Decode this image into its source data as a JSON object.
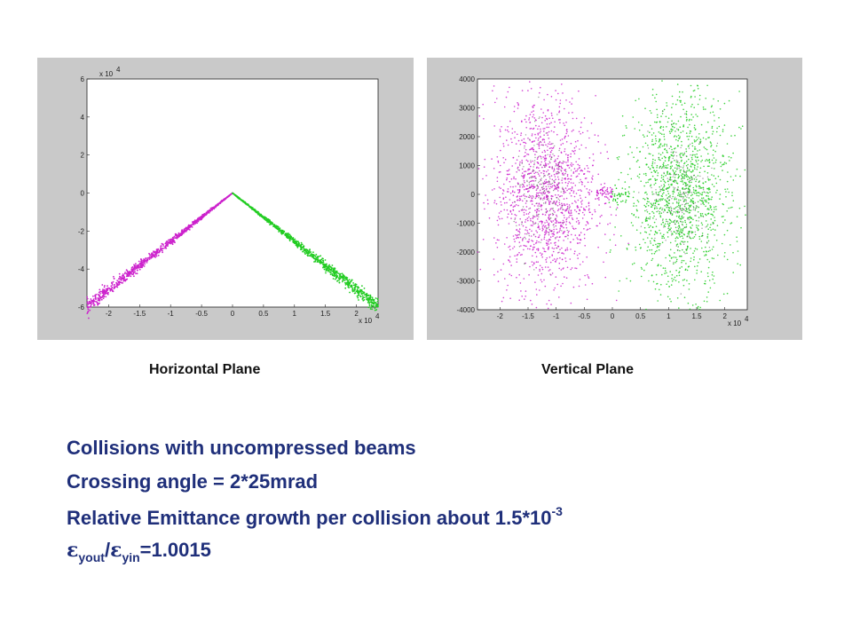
{
  "chart_data": [
    {
      "type": "scatter",
      "panel": "horizontal",
      "xlim": [
        -2.35,
        2.35
      ],
      "ylim": [
        -6,
        6
      ],
      "x_exponent_label": "x 10",
      "x_exponent": "4",
      "y_exponent_label": "x 10",
      "y_exponent": "4",
      "x_ticks": [
        -2,
        -1.5,
        -1,
        -0.5,
        0,
        0.5,
        1,
        1.5,
        2
      ],
      "x_tick_labels": [
        "-2",
        "-1.5",
        "-1",
        "-0.5",
        "0",
        "0.5",
        "1",
        "1.5",
        "2"
      ],
      "y_ticks": [
        -6,
        -4,
        -2,
        0,
        2,
        4,
        6
      ],
      "y_tick_labels": [
        "-6",
        "-4",
        "-2",
        "0",
        "2",
        "4",
        "6"
      ],
      "series": [
        {
          "color": "#cc22cc",
          "shape": "line from (0,0) to (-2.35,-6)",
          "x_range": [
            -2.35,
            0
          ],
          "slope": 2.55
        },
        {
          "color": "#22cc22",
          "shape": "line from (0,0) to (2.35,-6)",
          "x_range": [
            0,
            2.35
          ],
          "slope": -2.55
        }
      ],
      "grid": false
    },
    {
      "type": "scatter",
      "panel": "vertical",
      "xlim": [
        -2.4,
        2.4
      ],
      "ylim": [
        -4000,
        4000
      ],
      "x_exponent_label": "x 10",
      "x_exponent": "4",
      "x_ticks": [
        -2,
        -1.5,
        -1,
        -0.5,
        0,
        0.5,
        1,
        1.5,
        2
      ],
      "x_tick_labels": [
        "-2",
        "-1.5",
        "-1",
        "-0.5",
        "0",
        "0.5",
        "1",
        "1.5",
        "2"
      ],
      "y_ticks": [
        -4000,
        -3000,
        -2000,
        -1000,
        0,
        1000,
        2000,
        3000,
        4000
      ],
      "y_tick_labels": [
        "-4000",
        "-3000",
        "-2000",
        "-1000",
        "0",
        "1000",
        "2000",
        "3000",
        "4000"
      ],
      "series": [
        {
          "color": "#cc22cc",
          "center_x": -1.2,
          "center_y": 0,
          "spread_x": 0.45,
          "spread_y": 1700
        },
        {
          "color": "#22cc22",
          "center_x": 1.2,
          "center_y": 0,
          "spread_x": 0.45,
          "spread_y": 1700
        }
      ],
      "grid": false
    }
  ],
  "captions": {
    "horizontal": "Horizontal Plane",
    "vertical": "Vertical Plane"
  },
  "text": {
    "line1": "Collisions with uncompressed beams",
    "line2": "Crossing angle = 2*25mrad",
    "line3_main": "Relative Emittance growth per collision about 1.5*10",
    "line3_sup": "-3",
    "eps_symbol": "ε",
    "sub_out": "yout",
    "slash": "/",
    "sub_in": "yin",
    "ratio": "=1.0015"
  }
}
